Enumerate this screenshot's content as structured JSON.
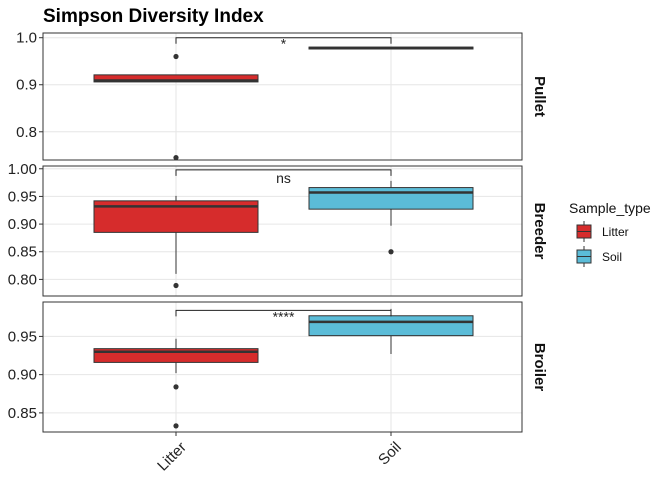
{
  "chart_data": {
    "type": "boxplot",
    "title": "Simpson Diversity Index",
    "x_categories": [
      "Litter",
      "Soil"
    ],
    "legend": {
      "title": "Sample_type",
      "position": "right",
      "items": [
        {
          "label": "Litter",
          "color": "#d62c2c"
        },
        {
          "label": "Soil",
          "color": "#5bbcd8"
        }
      ]
    },
    "grid": true,
    "panels": [
      {
        "name": "Pullet",
        "ylim": [
          0.74,
          1.01
        ],
        "yticks": [
          0.8,
          0.9,
          1.0
        ],
        "ytick_labels": [
          "0.8",
          "0.9",
          "1.0"
        ],
        "significance": "*",
        "sig_y": 1.0,
        "boxes": [
          {
            "group": "Litter",
            "q1": 0.906,
            "median": 0.909,
            "q3": 0.921,
            "whisker_low": 0.906,
            "whisker_high": 0.921,
            "outliers": [
              0.96,
              0.745
            ]
          },
          {
            "group": "Soil",
            "q1": 0.976,
            "median": 0.978,
            "q3": 0.98,
            "whisker_low": 0.976,
            "whisker_high": 0.98,
            "outliers": []
          }
        ]
      },
      {
        "name": "Breeder",
        "ylim": [
          0.77,
          1.005
        ],
        "yticks": [
          0.8,
          0.85,
          0.9,
          0.95,
          1.0
        ],
        "ytick_labels": [
          "0.80",
          "0.85",
          "0.90",
          "0.95",
          "1.00"
        ],
        "significance": "ns",
        "sig_y": 0.998,
        "boxes": [
          {
            "group": "Litter",
            "q1": 0.885,
            "median": 0.932,
            "q3": 0.942,
            "whisker_low": 0.81,
            "whisker_high": 0.951,
            "outliers": [
              0.789
            ]
          },
          {
            "group": "Soil",
            "q1": 0.927,
            "median": 0.957,
            "q3": 0.966,
            "whisker_low": 0.897,
            "whisker_high": 0.978,
            "outliers": [
              0.85
            ]
          }
        ]
      },
      {
        "name": "Broiler",
        "ylim": [
          0.825,
          0.995
        ],
        "yticks": [
          0.85,
          0.9,
          0.95
        ],
        "ytick_labels": [
          "0.85",
          "0.90",
          "0.95"
        ],
        "significance": "****",
        "sig_y": 0.984,
        "boxes": [
          {
            "group": "Litter",
            "q1": 0.916,
            "median": 0.93,
            "q3": 0.934,
            "whisker_low": 0.902,
            "whisker_high": 0.947,
            "outliers": [
              0.884,
              0.833
            ]
          },
          {
            "group": "Soil",
            "q1": 0.951,
            "median": 0.969,
            "q3": 0.977,
            "whisker_low": 0.927,
            "whisker_high": 0.986,
            "outliers": []
          }
        ]
      }
    ]
  }
}
